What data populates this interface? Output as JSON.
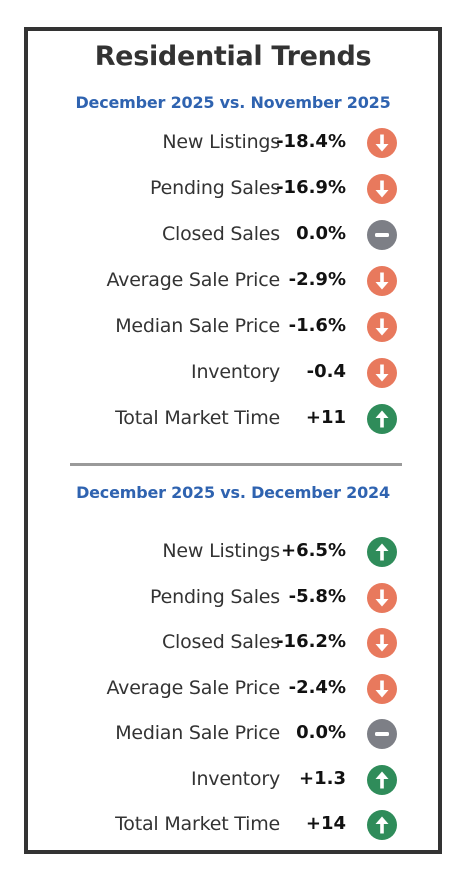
{
  "title": "Residential Trends",
  "colors": {
    "down": "#e8795d",
    "up": "#2f8c5a",
    "flat": "#7d7f86",
    "subtitle": "#2f63b0"
  },
  "sections": [
    {
      "heading": "December 2025 vs. November 2025",
      "rows": [
        {
          "label": "New Listings",
          "value": "-18.4%",
          "trend": "down",
          "icon": "arrow-down-icon"
        },
        {
          "label": "Pending Sales",
          "value": "-16.9%",
          "trend": "down",
          "icon": "arrow-down-icon"
        },
        {
          "label": "Closed Sales",
          "value": "0.0%",
          "trend": "flat",
          "icon": "minus-icon"
        },
        {
          "label": "Average Sale Price",
          "value": "-2.9%",
          "trend": "down",
          "icon": "arrow-down-icon"
        },
        {
          "label": "Median Sale Price",
          "value": "-1.6%",
          "trend": "down",
          "icon": "arrow-down-icon"
        },
        {
          "label": "Inventory",
          "value": "-0.4",
          "trend": "down",
          "icon": "arrow-down-icon"
        },
        {
          "label": "Total Market Time",
          "value": "+11",
          "trend": "up",
          "icon": "arrow-up-icon"
        }
      ]
    },
    {
      "heading": "December 2025 vs. December 2024",
      "rows": [
        {
          "label": "New Listings",
          "value": "+6.5%",
          "trend": "up",
          "icon": "arrow-up-icon"
        },
        {
          "label": "Pending Sales",
          "value": "-5.8%",
          "trend": "down",
          "icon": "arrow-down-icon"
        },
        {
          "label": "Closed Sales",
          "value": "-16.2%",
          "trend": "down",
          "icon": "arrow-down-icon"
        },
        {
          "label": "Average Sale Price",
          "value": "-2.4%",
          "trend": "down",
          "icon": "arrow-down-icon"
        },
        {
          "label": "Median Sale Price",
          "value": "0.0%",
          "trend": "flat",
          "icon": "minus-icon"
        },
        {
          "label": "Inventory",
          "value": "+1.3",
          "trend": "up",
          "icon": "arrow-up-icon"
        },
        {
          "label": "Total Market Time",
          "value": "+14",
          "trend": "up",
          "icon": "arrow-up-icon"
        }
      ]
    }
  ]
}
